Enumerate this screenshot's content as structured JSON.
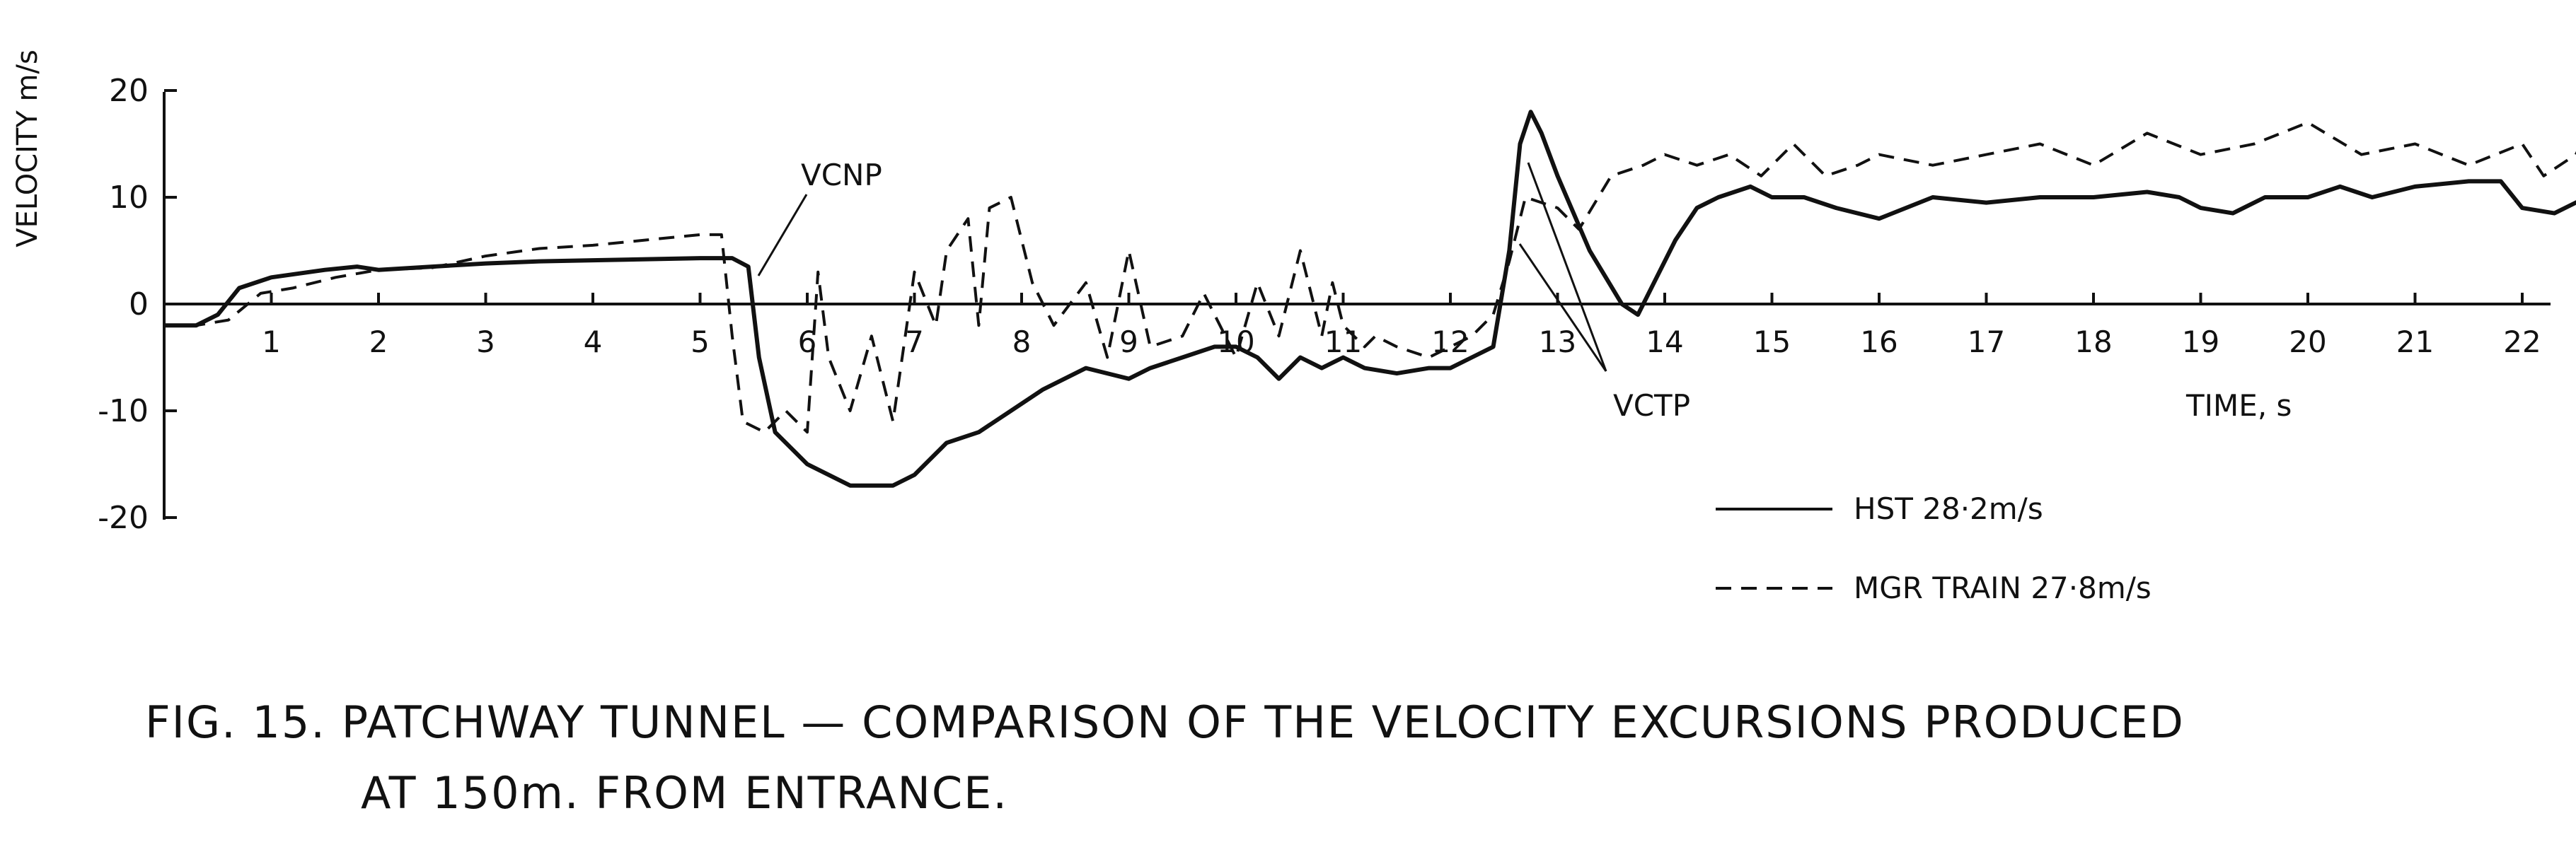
{
  "chart_data": {
    "type": "line",
    "title": "",
    "xlabel": "TIME, s",
    "ylabel": "VELOCITY m/s",
    "xlim": [
      0,
      22.6
    ],
    "ylim": [
      -20,
      20
    ],
    "xticks": [
      1,
      2,
      3,
      4,
      5,
      6,
      7,
      8,
      9,
      10,
      11,
      12,
      13,
      14,
      15,
      16,
      17,
      18,
      19,
      20,
      21,
      22
    ],
    "yticks": [
      -20,
      -10,
      0,
      10,
      20
    ],
    "grid": false,
    "legend_position": "lower-right",
    "series": [
      {
        "name": "HST 28·2m/s",
        "style": "solid",
        "x": [
          0,
          0.3,
          0.5,
          0.7,
          1.0,
          1.5,
          1.8,
          2.0,
          2.5,
          3.0,
          3.5,
          4.0,
          4.5,
          5.0,
          5.3,
          5.45,
          5.55,
          5.7,
          6.0,
          6.4,
          6.8,
          7.0,
          7.3,
          7.6,
          7.9,
          8.2,
          8.6,
          9.0,
          9.2,
          9.5,
          9.8,
          10.0,
          10.2,
          10.4,
          10.6,
          10.8,
          11.0,
          11.2,
          11.5,
          11.8,
          12.0,
          12.2,
          12.4,
          12.55,
          12.65,
          12.75,
          12.85,
          13.0,
          13.3,
          13.6,
          13.75,
          13.9,
          14.1,
          14.3,
          14.5,
          14.8,
          15.0,
          15.3,
          15.6,
          16.0,
          16.5,
          17.0,
          17.5,
          18.0,
          18.5,
          18.8,
          19.0,
          19.3,
          19.6,
          20.0,
          20.3,
          20.6,
          21.0,
          21.5,
          21.8,
          22.0,
          22.3,
          22.6
        ],
        "values": [
          -2,
          -2,
          -1,
          1.5,
          2.5,
          3.2,
          3.5,
          3.2,
          3.5,
          3.8,
          4.0,
          4.1,
          4.2,
          4.3,
          4.3,
          3.5,
          -5,
          -12,
          -15,
          -17,
          -17,
          -16,
          -13,
          -12,
          -10,
          -8,
          -6,
          -7,
          -6,
          -5,
          -4,
          -4,
          -5,
          -7,
          -5,
          -6,
          -5,
          -6,
          -6.5,
          -6,
          -6,
          -5,
          -4,
          5,
          15,
          18,
          16,
          12,
          5,
          0,
          -1,
          2,
          6,
          9,
          10,
          11,
          10,
          10,
          9,
          8,
          10,
          9.5,
          10,
          10,
          10.5,
          10,
          9,
          8.5,
          10,
          10,
          11,
          10,
          11,
          11.5,
          11.5,
          9,
          8.5,
          10
        ]
      },
      {
        "name": "MGR TRAIN 27·8m/s",
        "style": "dashed",
        "x": [
          0,
          0.3,
          0.6,
          0.9,
          1.2,
          1.6,
          2.0,
          2.5,
          3.0,
          3.5,
          4.0,
          4.5,
          5.0,
          5.2,
          5.3,
          5.4,
          5.6,
          5.8,
          6.0,
          6.1,
          6.2,
          6.4,
          6.6,
          6.8,
          7.0,
          7.2,
          7.3,
          7.5,
          7.6,
          7.7,
          7.9,
          8.1,
          8.3,
          8.6,
          8.8,
          9.0,
          9.2,
          9.5,
          9.7,
          9.9,
          10.0,
          10.2,
          10.4,
          10.6,
          10.8,
          10.9,
          11.0,
          11.2,
          11.3,
          11.5,
          11.8,
          12.0,
          12.2,
          12.4,
          12.55,
          12.7,
          13.0,
          13.2,
          13.5,
          13.8,
          14.0,
          14.3,
          14.6,
          14.9,
          15.2,
          15.5,
          15.8,
          16.0,
          16.5,
          17.0,
          17.5,
          18.0,
          18.5,
          19.0,
          19.5,
          20.0,
          20.5,
          21.0,
          21.5,
          22.0,
          22.2,
          22.5,
          22.6
        ],
        "values": [
          -2,
          -2,
          -1.5,
          1.0,
          1.5,
          2.5,
          3.2,
          3.4,
          4.5,
          5.2,
          5.5,
          6.0,
          6.5,
          6.5,
          -3,
          -11,
          -12,
          -10,
          -12,
          3,
          -5,
          -10,
          -3,
          -11,
          3,
          -2,
          5,
          8,
          -2,
          9,
          10,
          2,
          -2,
          2,
          -5,
          5,
          -4,
          -3,
          1,
          -3,
          -5,
          2,
          -3,
          5,
          -3,
          2,
          -2,
          -4,
          -3,
          -4,
          -5,
          -4,
          -3,
          -1,
          4,
          10,
          9,
          7,
          12,
          13,
          14,
          13,
          14,
          12,
          15,
          12,
          13,
          14,
          13,
          14,
          15,
          13,
          16,
          14,
          15,
          17,
          14,
          15,
          13,
          15,
          12,
          14,
          16
        ]
      }
    ],
    "annotations": [
      "VCNP",
      "VCTP"
    ]
  },
  "legend": {
    "hst": "HST 28·2m/s",
    "mgr": "MGR TRAIN 27·8m/s"
  },
  "caption": {
    "line1": "FIG. 15. PATCHWAY TUNNEL — COMPARISON OF THE VELOCITY EXCURSIONS PRODUCED",
    "line2": "AT 150m. FROM ENTRANCE."
  },
  "colors": {
    "ink": "#111111",
    "background": "#ffffff"
  }
}
